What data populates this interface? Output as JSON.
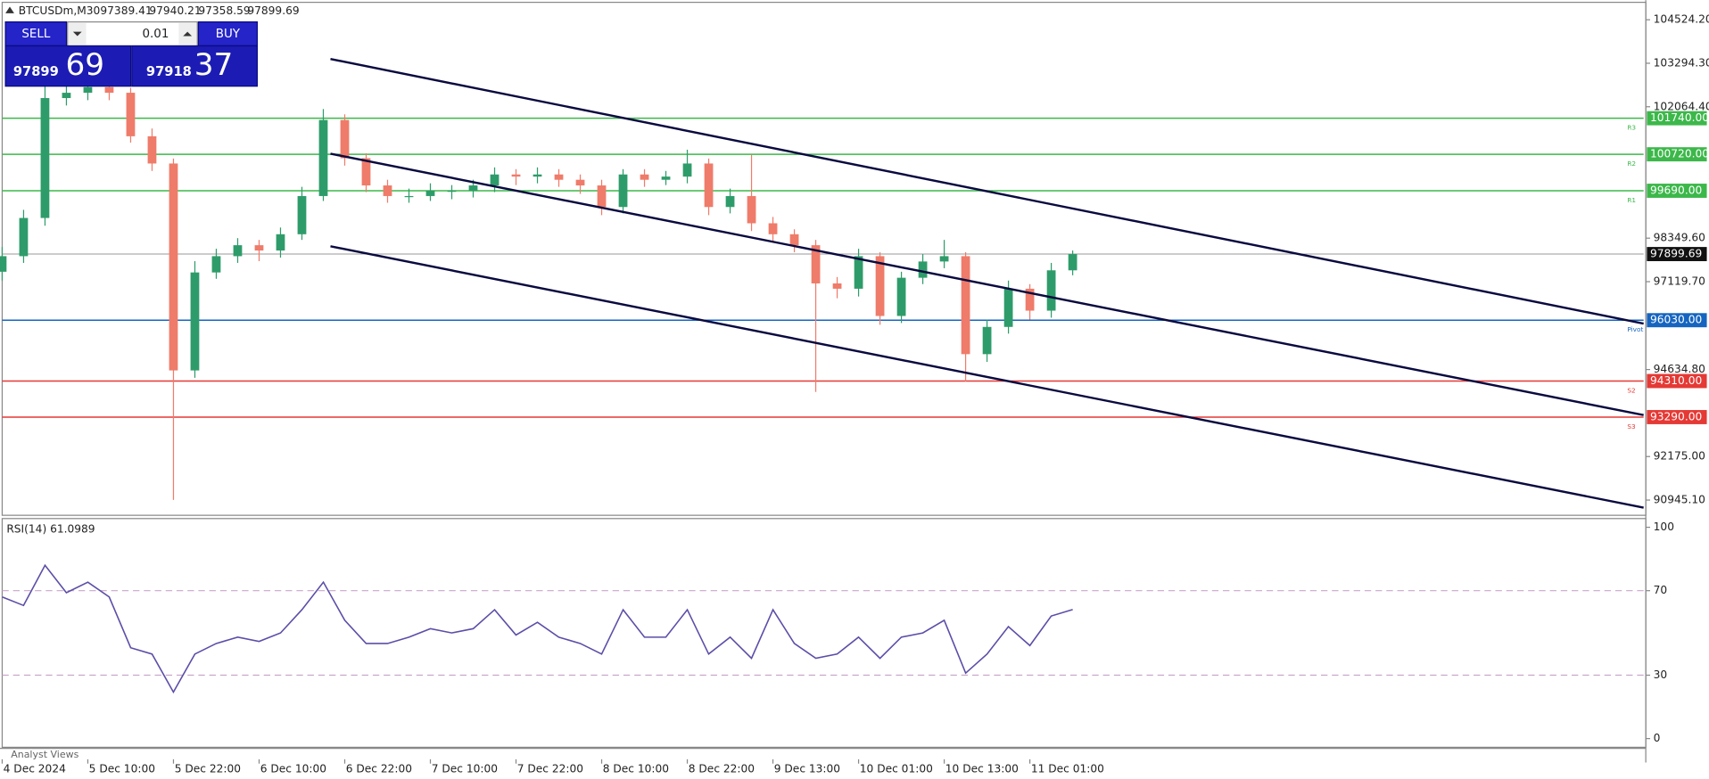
{
  "chart_data": [
    {
      "type": "candlestick",
      "title": "BTCUSDm,M30",
      "ohlc_header": [
        97389.41,
        97940.21,
        97358.59,
        97899.69
      ],
      "x": [
        0,
        6,
        12,
        18,
        24,
        30,
        36,
        42,
        48,
        54,
        60,
        66,
        72,
        78,
        84,
        90,
        96,
        102,
        108,
        114,
        120,
        126,
        132,
        138,
        144,
        150,
        156,
        162,
        168,
        174,
        180,
        186,
        192,
        198,
        204,
        210,
        216,
        222,
        228,
        234,
        240,
        246,
        252,
        258,
        264,
        270,
        276,
        282,
        288,
        294,
        300
      ],
      "open": [
        97400,
        97840,
        98920,
        102310,
        102460,
        102620,
        102460,
        101230,
        100460,
        94610,
        97380,
        97840,
        98150,
        98000,
        98460,
        99540,
        101690,
        100610,
        99840,
        99540,
        99540,
        99690,
        99690,
        99840,
        100150,
        100090,
        100150,
        100000,
        99840,
        99230,
        100150,
        100000,
        100090,
        100460,
        99230,
        99540,
        98770,
        98460,
        98150,
        97070,
        96920,
        97840,
        96150,
        97230,
        97690,
        97840,
        95070,
        95840,
        96920,
        96300,
        97440
      ],
      "high": [
        98100,
        99150,
        102700,
        102800,
        102900,
        102850,
        102600,
        101450,
        100600,
        97700,
        98050,
        98350,
        98300,
        98650,
        99800,
        102000,
        101850,
        100750,
        100000,
        99750,
        99900,
        99850,
        100000,
        100350,
        100300,
        100350,
        100300,
        100150,
        100000,
        100300,
        100300,
        100250,
        100850,
        100600,
        99750,
        100700,
        98950,
        98600,
        98300,
        97250,
        98050,
        97950,
        97400,
        97900,
        98300,
        97950,
        96050,
        97150,
        97050,
        97650,
        98000
      ],
      "low": [
        97150,
        97650,
        98700,
        102100,
        102250,
        102250,
        101050,
        100250,
        90950,
        94400,
        97200,
        97650,
        97700,
        97800,
        98300,
        99400,
        100400,
        99650,
        99350,
        99350,
        99400,
        99450,
        99500,
        99650,
        99850,
        99900,
        99800,
        99600,
        99000,
        99050,
        99800,
        99850,
        99900,
        99000,
        99050,
        98550,
        98250,
        97950,
        94000,
        96650,
        96700,
        95900,
        95950,
        97050,
        97500,
        94300,
        94850,
        95650,
        96050,
        96100,
        97300
      ],
      "close": [
        97840,
        98920,
        102310,
        102460,
        102620,
        102460,
        101230,
        100460,
        94610,
        97380,
        97840,
        98150,
        98000,
        98460,
        99540,
        101690,
        100610,
        99840,
        99540,
        99540,
        99690,
        99690,
        99840,
        100150,
        100090,
        100150,
        100000,
        99840,
        99230,
        100150,
        100000,
        100090,
        100460,
        99230,
        99540,
        98770,
        98460,
        98150,
        97070,
        96920,
        97840,
        96150,
        97230,
        97690,
        97840,
        95070,
        95840,
        96920,
        96300,
        97440,
        97899.69
      ],
      "up_color": "#2e9c6a",
      "down_color": "#ef7b6a",
      "xlim": [
        0,
        460
      ],
      "xticks": [
        {
          "value": 0,
          "label": "4 Dec 2024"
        },
        {
          "value": 24,
          "label": "5 Dec 10:00"
        },
        {
          "value": 48,
          "label": "5 Dec 22:00"
        },
        {
          "value": 72,
          "label": "6 Dec 10:00"
        },
        {
          "value": 96,
          "label": "6 Dec 22:00"
        },
        {
          "value": 120,
          "label": "7 Dec 10:00"
        },
        {
          "value": 144,
          "label": "7 Dec 22:00"
        },
        {
          "value": 168,
          "label": "8 Dec 10:00"
        },
        {
          "value": 192,
          "label": "8 Dec 22:00"
        },
        {
          "value": 216,
          "label": "9 Dec 13:00"
        },
        {
          "value": 240,
          "label": "10 Dec 01:00"
        },
        {
          "value": 264,
          "label": "10 Dec 13:00"
        },
        {
          "value": 288,
          "label": "11 Dec 01:00"
        }
      ],
      "ylim": [
        90545,
        105017
      ],
      "yticks": [
        {
          "value": 104524.2,
          "label": "104524.20"
        },
        {
          "value": 103294.3,
          "label": "103294.30"
        },
        {
          "value": 102064.4,
          "label": "102064.40"
        },
        {
          "value": 98349.6,
          "label": "98349.60"
        },
        {
          "value": 97119.7,
          "label": "97119.70"
        },
        {
          "value": 94634.8,
          "label": "94634.80"
        },
        {
          "value": 92175,
          "label": "92175.00"
        },
        {
          "value": 90945.1,
          "label": "90945.10"
        }
      ],
      "levels": [
        {
          "name": "R3",
          "value": 101740,
          "label": "101740.00",
          "color": "#3cb84a"
        },
        {
          "name": "R2",
          "value": 100720,
          "label": "100720.00",
          "color": "#3cb84a"
        },
        {
          "name": "R1",
          "value": 99690,
          "label": "99690.00",
          "color": "#3cb84a"
        },
        {
          "name": "Pivot",
          "value": 96030,
          "label": "96030.00",
          "color": "#1565c0"
        },
        {
          "name": "S2",
          "value": 94310,
          "label": "94310.00",
          "color": "#e53935"
        },
        {
          "name": "S3",
          "value": 93290,
          "label": "93290.00",
          "color": "#e53935"
        }
      ],
      "current_price": 97899.69,
      "trendlines": [
        {
          "x": [
            92,
            460
          ],
          "y": [
            103416,
            95934
          ]
        },
        {
          "x": [
            92,
            460
          ],
          "y": [
            100737,
            93347
          ]
        },
        {
          "x": [
            92,
            460
          ],
          "y": [
            98120,
            90730
          ]
        }
      ]
    },
    {
      "type": "line",
      "title": "RSI(14) 61.0989",
      "color": "#5b4ea8",
      "x": [
        0,
        6,
        12,
        18,
        24,
        30,
        36,
        42,
        48,
        54,
        60,
        66,
        72,
        78,
        84,
        90,
        96,
        102,
        108,
        114,
        120,
        126,
        132,
        138,
        144,
        150,
        156,
        162,
        168,
        174,
        180,
        186,
        192,
        198,
        204,
        210,
        216,
        222,
        228,
        234,
        240,
        246,
        252,
        258,
        264,
        270,
        276,
        282,
        288,
        294,
        300
      ],
      "values": [
        67,
        63,
        82,
        69,
        74,
        67,
        43,
        40,
        22,
        40,
        45,
        48,
        46,
        50,
        61,
        74,
        56,
        45,
        45,
        48,
        52,
        50,
        52,
        61,
        49,
        55,
        48,
        45,
        40,
        61,
        48,
        48,
        61,
        40,
        48,
        38,
        61,
        45,
        38,
        40,
        48,
        38,
        48,
        50,
        56,
        31,
        40,
        53,
        44,
        58,
        61.0989
      ],
      "xlim": [
        0,
        460
      ],
      "ylim": [
        0,
        100
      ],
      "yticks": [
        0,
        30,
        70,
        100
      ],
      "levels": [
        30,
        70
      ]
    }
  ],
  "trade_panel": {
    "sell": "SELL",
    "buy": "BUY",
    "lot": "0.01",
    "bid_main": "97899",
    "bid_small": "69",
    "ask_main": "97918",
    "ask_small": "37"
  },
  "footer": "Analyst Views"
}
